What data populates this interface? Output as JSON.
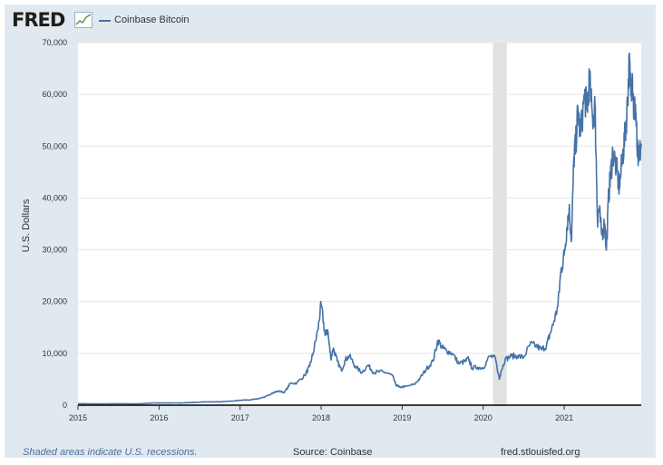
{
  "header": {
    "logo_text": "FRED",
    "logo_icon": "trend-chart-icon",
    "legend_label": "Coinbase Bitcoin"
  },
  "footer": {
    "recession_note": "Shaded areas indicate U.S. recessions.",
    "source": "Source: Coinbase",
    "url": "fred.stlouisfed.org"
  },
  "colors": {
    "frame": "#e1e9f0",
    "line": "#4572a7",
    "recession": "#e1e1e1",
    "grid": "#e6e6e6"
  },
  "chart_data": {
    "type": "line",
    "title": "Coinbase Bitcoin",
    "xlabel": "",
    "ylabel": "U.S. Dollars",
    "xlim": [
      2015.0,
      2021.95
    ],
    "ylim": [
      0,
      70000
    ],
    "x_ticks": [
      2015,
      2016,
      2017,
      2018,
      2019,
      2020,
      2021
    ],
    "x_tick_labels": [
      "2015",
      "2016",
      "2017",
      "2018",
      "2019",
      "2020",
      "2021"
    ],
    "y_ticks": [
      0,
      10000,
      20000,
      30000,
      40000,
      50000,
      60000,
      70000
    ],
    "y_tick_labels": [
      "0",
      "10,000",
      "20,000",
      "30,000",
      "40,000",
      "50,000",
      "60,000",
      "70,000"
    ],
    "grid": true,
    "recessions": [
      [
        2020.12,
        2020.29
      ]
    ],
    "series": [
      {
        "name": "Coinbase Bitcoin",
        "x": [
          2015.0,
          2015.25,
          2015.5,
          2015.75,
          2015.92,
          2016.0,
          2016.25,
          2016.45,
          2016.6,
          2016.75,
          2016.92,
          2017.0,
          2017.1,
          2017.2,
          2017.3,
          2017.4,
          2017.47,
          2017.55,
          2017.62,
          2017.7,
          2017.8,
          2017.86,
          2017.9,
          2017.96,
          2018.0,
          2018.05,
          2018.08,
          2018.12,
          2018.15,
          2018.2,
          2018.25,
          2018.3,
          2018.35,
          2018.42,
          2018.5,
          2018.58,
          2018.65,
          2018.72,
          2018.8,
          2018.88,
          2018.92,
          2018.96,
          2019.05,
          2019.15,
          2019.22,
          2019.3,
          2019.38,
          2019.44,
          2019.5,
          2019.55,
          2019.62,
          2019.7,
          2019.78,
          2019.82,
          2019.86,
          2019.93,
          2020.0,
          2020.08,
          2020.15,
          2020.2,
          2020.22,
          2020.27,
          2020.35,
          2020.42,
          2020.5,
          2020.58,
          2020.65,
          2020.72,
          2020.78,
          2020.82,
          2020.87,
          2020.92,
          2020.96,
          2021.0,
          2021.03,
          2021.06,
          2021.09,
          2021.12,
          2021.14,
          2021.17,
          2021.2,
          2021.25,
          2021.28,
          2021.31,
          2021.35,
          2021.38,
          2021.41,
          2021.43,
          2021.46,
          2021.5,
          2021.52,
          2021.55,
          2021.57,
          2021.6,
          2021.64,
          2021.68,
          2021.72,
          2021.75,
          2021.78,
          2021.8,
          2021.82,
          2021.84,
          2021.86,
          2021.88,
          2021.9,
          2021.92,
          2021.95
        ],
        "values": [
          300,
          250,
          280,
          240,
          420,
          430,
          420,
          550,
          650,
          650,
          800,
          950,
          1000,
          1200,
          1500,
          2400,
          2700,
          2500,
          4200,
          4300,
          5800,
          7500,
          10000,
          14500,
          19500,
          13500,
          14500,
          9000,
          11000,
          8500,
          6700,
          8800,
          9500,
          7500,
          6300,
          7700,
          6300,
          6500,
          6300,
          5700,
          4000,
          3500,
          3600,
          4000,
          5200,
          7000,
          8500,
          12500,
          11000,
          10500,
          10000,
          8000,
          8500,
          9000,
          7200,
          7300,
          7200,
          9500,
          9000,
          5000,
          6500,
          8800,
          9500,
          9500,
          9200,
          11800,
          11500,
          10700,
          11500,
          13500,
          16000,
          19000,
          26000,
          29000,
          34000,
          38000,
          32000,
          48000,
          50000,
          57000,
          52000,
          60000,
          57000,
          63000,
          55000,
          58000,
          36000,
          38000,
          33000,
          35000,
          30000,
          41000,
          44000,
          49000,
          46000,
          42000,
          48000,
          52000,
          58000,
          66000,
          61000,
          64000,
          56000,
          58000,
          49000,
          47000,
          50500
        ]
      }
    ]
  }
}
